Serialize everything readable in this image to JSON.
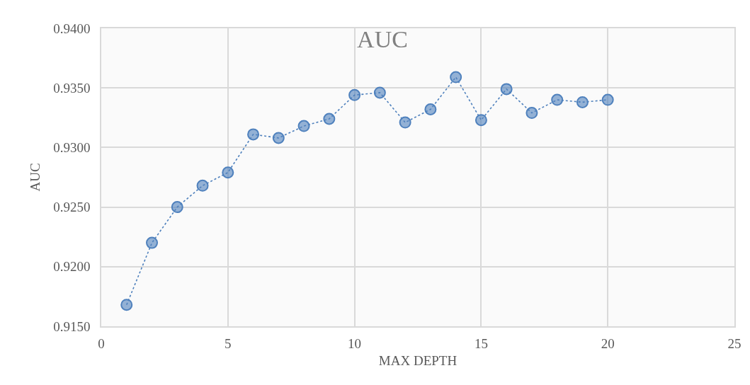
{
  "chart_data": {
    "type": "line",
    "title": "AUC",
    "xlabel": "MAX DEPTH",
    "ylabel": "AUC",
    "x": [
      1,
      2,
      3,
      4,
      5,
      6,
      7,
      8,
      9,
      10,
      11,
      12,
      13,
      14,
      15,
      16,
      17,
      18,
      19,
      20
    ],
    "series": [
      {
        "color": "#4f81bd",
        "values": [
          0.9168,
          0.922,
          0.925,
          0.9268,
          0.9279,
          0.9311,
          0.9308,
          0.9318,
          0.9324,
          0.9344,
          0.9346,
          0.9321,
          0.9332,
          0.9359,
          0.9323,
          0.9349,
          0.9329,
          0.934,
          0.9338,
          0.934
        ]
      }
    ],
    "xlim": [
      0,
      25
    ],
    "xticks": [
      0,
      5,
      10,
      15,
      20,
      25
    ],
    "ylim": [
      0.915,
      0.94
    ],
    "yticks": [
      {
        "value": 0.915,
        "label": "0.9150"
      },
      {
        "value": 0.92,
        "label": "0.9200"
      },
      {
        "value": 0.925,
        "label": "0.9250"
      },
      {
        "value": 0.93,
        "label": "0.9300"
      },
      {
        "value": 0.935,
        "label": "0.9350"
      },
      {
        "value": 0.94,
        "label": "0.9400"
      }
    ],
    "grid": true,
    "marker": "circle",
    "line_style": "dotted"
  }
}
